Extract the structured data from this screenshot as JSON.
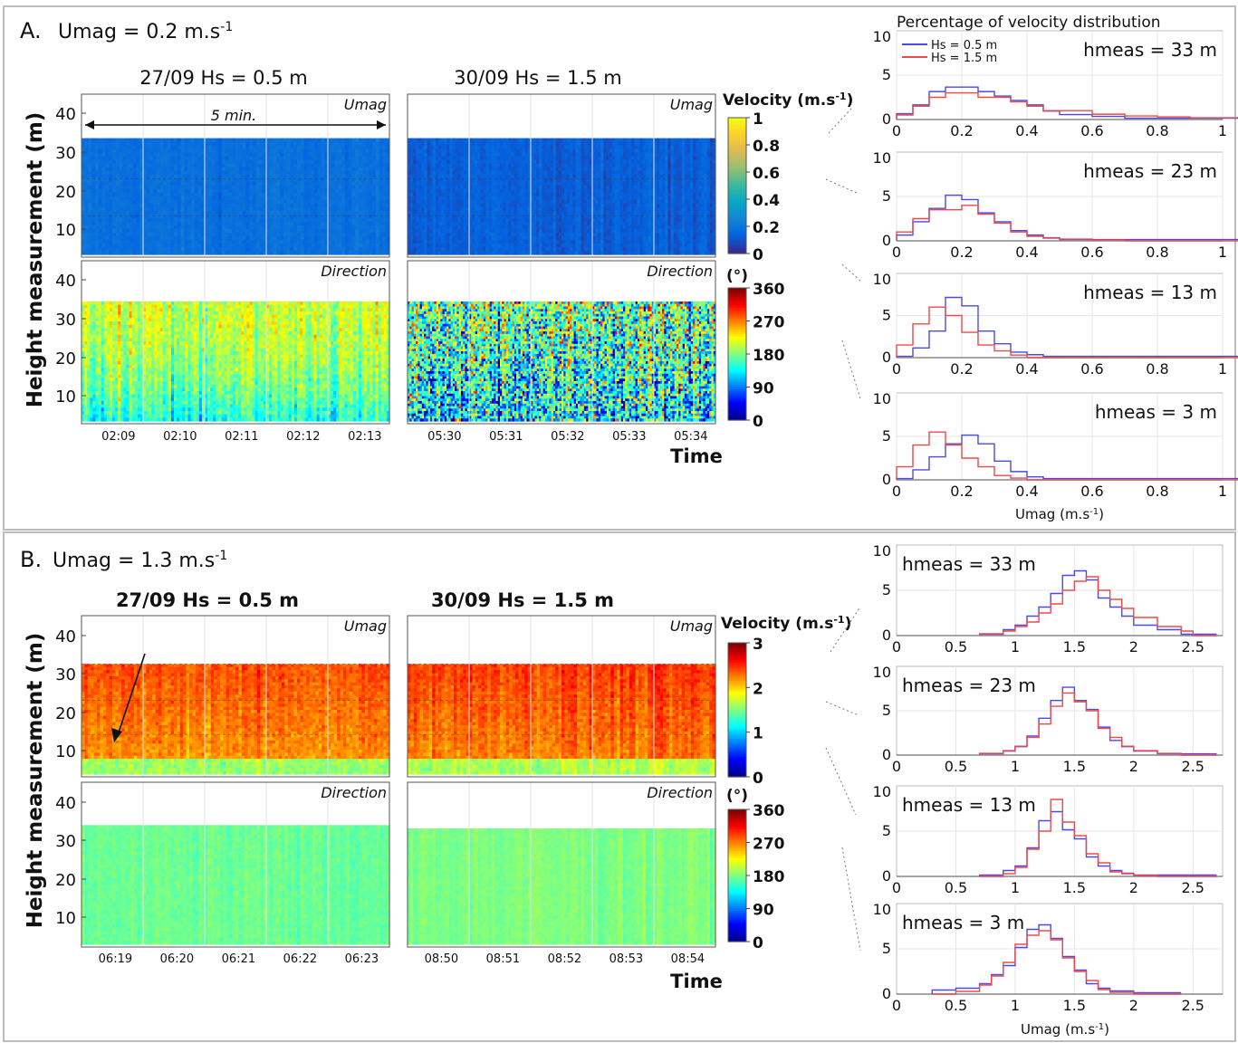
{
  "figure": {
    "colors": {
      "series_hs05": "#4a4ae8",
      "series_hs15": "#f04848",
      "jet": [
        "#00008f",
        "#0000ff",
        "#0080ff",
        "#00ffff",
        "#80ff80",
        "#ffff00",
        "#ff8000",
        "#ff0000",
        "#800000"
      ],
      "parula": [
        "#352a87",
        "#0363e1",
        "#1485d4",
        "#06a7c6",
        "#38b99e",
        "#92bf73",
        "#d9ba56",
        "#fcce2e",
        "#f9fb0e"
      ]
    }
  },
  "panels": [
    {
      "id": "A",
      "letter": "A.",
      "title": "Umag = 0.2 m.s",
      "title_sup": "-1",
      "columns": [
        {
          "title": "27/09 Hs = 0.5 m",
          "times": [
            "02:09",
            "02:10",
            "02:11",
            "02:12",
            "02:13"
          ]
        },
        {
          "title": "30/09 Hs = 1.5 m",
          "times": [
            "05:30",
            "05:31",
            "05:32",
            "05:33",
            "05:34"
          ]
        }
      ],
      "span_label": "5 min.",
      "ylabel": "Height measurement (m)",
      "yticks": [
        "40",
        "30",
        "20",
        "10"
      ],
      "xlabel": "Time",
      "row_labels": [
        "Umag",
        "Direction"
      ],
      "colorbar_velocity": {
        "title": "Velocity (m.s",
        "title_sup": "-1",
        "title_end": ")",
        "ticks": [
          "1",
          "0.8",
          "0.6",
          "0.4",
          "0.2",
          "0"
        ],
        "colormap": "parula"
      },
      "colorbar_direction": {
        "title": "(°)",
        "ticks": [
          "360",
          "270",
          "180",
          "90",
          "0"
        ],
        "colormap": "jet"
      },
      "hist_header": "Percentage of velocity distribution",
      "hist_xlabel": "Umag (m.s",
      "hist_xlabel_sup": "-1",
      "hist_xlabel_end": ")",
      "hist_ylim": [
        0,
        10
      ]
    },
    {
      "id": "B",
      "letter": "B.",
      "title": "Umag = 1.3 m.s",
      "title_sup": "-1",
      "columns": [
        {
          "title": "27/09 Hs = 0.5 m",
          "times": [
            "06:19",
            "06:20",
            "06:21",
            "06:22",
            "06:23"
          ]
        },
        {
          "title": "30/09 Hs = 1.5 m",
          "times": [
            "08:50",
            "08:51",
            "08:52",
            "08:53",
            "08:54"
          ]
        }
      ],
      "ylabel": "Height measurement (m)",
      "yticks": [
        "40",
        "30",
        "20",
        "10"
      ],
      "xlabel": "Time",
      "row_labels": [
        "Umag",
        "Direction"
      ],
      "colorbar_velocity": {
        "title": "Velocity (m.s",
        "title_sup": "-1",
        "title_end": ")",
        "ticks": [
          "3",
          "2",
          "1",
          "0"
        ],
        "colormap": "jet"
      },
      "colorbar_direction": {
        "title": "(°)",
        "ticks": [
          "360",
          "270",
          "180",
          "90",
          "0"
        ],
        "colormap": "jet"
      },
      "hist_xlabel": "Umag (m.s",
      "hist_xlabel_sup": "-1",
      "hist_xlabel_end": ")",
      "hist_ylim": [
        0,
        10
      ]
    }
  ],
  "chart_data": [
    {
      "type": "heatmap",
      "panel": "A",
      "description_fields": {
        "rows": [
          "Umag",
          "Direction"
        ]
      },
      "columns": [
        "27/09 Hs = 0.5 m",
        "30/09 Hs = 1.5 m"
      ],
      "x_ticks": [
        [
          "02:09",
          "02:10",
          "02:11",
          "02:12",
          "02:13"
        ],
        [
          "05:30",
          "05:31",
          "05:32",
          "05:33",
          "05:34"
        ]
      ],
      "y_ticks": [
        40,
        30,
        20,
        10
      ],
      "ylim": [
        2,
        44
      ],
      "data_extent_height": [
        3,
        33
      ],
      "measurement_heights": [
        3,
        13,
        23,
        33
      ],
      "umag_clim": [
        0,
        1
      ],
      "direction_clim": [
        0,
        360
      ],
      "typical_umag": [
        0.15,
        0.18
      ],
      "typical_direction": [
        170,
        190
      ]
    },
    {
      "type": "heatmap",
      "panel": "B",
      "columns": [
        "27/09 Hs = 0.5 m",
        "30/09 Hs = 1.5 m"
      ],
      "x_ticks": [
        [
          "06:19",
          "06:20",
          "06:21",
          "06:22",
          "06:23"
        ],
        [
          "08:50",
          "08:51",
          "08:52",
          "08:53",
          "08:54"
        ]
      ],
      "y_ticks": [
        40,
        30,
        20,
        10
      ],
      "ylim": [
        2,
        44
      ],
      "data_extent_height": [
        3,
        33
      ],
      "measurement_heights": [
        3,
        13,
        23,
        33
      ],
      "umag_clim": [
        0,
        3
      ],
      "direction_clim": [
        0,
        360
      ],
      "typical_umag": [
        2.3,
        2.4
      ],
      "typical_direction": [
        175,
        180
      ]
    },
    {
      "type": "line",
      "panel": "A",
      "step": true,
      "legend": [
        "Hs = 0.5 m",
        "Hs = 1.5 m"
      ],
      "legend_position": "top-left",
      "xlim": [
        0,
        1
      ],
      "ylim": [
        0,
        10
      ],
      "xticks": [
        0,
        0.2,
        0.4,
        0.6,
        0.8,
        1
      ],
      "yticks": [
        0,
        5,
        10
      ],
      "subplots": [
        {
          "label": "hmeas = 33 m",
          "x": [
            0,
            0.05,
            0.1,
            0.15,
            0.2,
            0.25,
            0.3,
            0.35,
            0.4,
            0.45,
            0.5,
            0.6,
            0.7,
            0.8,
            0.9,
            1.0
          ],
          "series": [
            {
              "name": "Hs = 0.5 m",
              "values": [
                0.5,
                1.5,
                3.0,
                3.5,
                3.5,
                3.0,
                2.5,
                2.0,
                1.5,
                0.8,
                0.4,
                0.2,
                0,
                0,
                0,
                0
              ]
            },
            {
              "name": "Hs = 1.5 m",
              "values": [
                0.5,
                1.5,
                2.5,
                3.0,
                3.0,
                2.5,
                2.5,
                2.0,
                1.5,
                1.0,
                1.0,
                0.6,
                0.4,
                0.3,
                0.2,
                0.2
              ]
            }
          ]
        },
        {
          "label": "hmeas = 23 m",
          "x": [
            0,
            0.05,
            0.1,
            0.15,
            0.2,
            0.25,
            0.3,
            0.35,
            0.4,
            0.45,
            0.5,
            0.6,
            0.7,
            0.8,
            0.9,
            1.0
          ],
          "series": [
            {
              "name": "Hs = 0.5 m",
              "values": [
                0.5,
                2.0,
                3.5,
                5.0,
                4.5,
                3.0,
                2.0,
                1.0,
                0.5,
                0.2,
                0,
                0,
                0,
                0,
                0,
                0
              ]
            },
            {
              "name": "Hs = 1.5 m",
              "values": [
                1.0,
                2.5,
                3.5,
                3.5,
                4.0,
                3.0,
                2.0,
                1.0,
                0.5,
                0.3,
                0.2,
                0.1,
                0,
                0,
                0,
                0
              ]
            }
          ]
        },
        {
          "label": "hmeas = 13 m",
          "x": [
            0,
            0.05,
            0.1,
            0.15,
            0.2,
            0.25,
            0.3,
            0.35,
            0.4,
            0.45,
            0.5,
            0.6,
            0.7,
            0.8,
            0.9,
            1.0
          ],
          "series": [
            {
              "name": "Hs = 0.5 m",
              "values": [
                0,
                1.0,
                3.0,
                7.0,
                6.0,
                3.0,
                1.5,
                0.5,
                0.2,
                0,
                0,
                0,
                0,
                0,
                0,
                0
              ]
            },
            {
              "name": "Hs = 1.5 m",
              "values": [
                1.5,
                4.0,
                6.0,
                5.0,
                3.0,
                1.5,
                0.8,
                0.3,
                0,
                0,
                0,
                0,
                0,
                0,
                0,
                0
              ]
            }
          ]
        },
        {
          "label": "hmeas = 3 m",
          "x": [
            0,
            0.05,
            0.1,
            0.15,
            0.2,
            0.25,
            0.3,
            0.35,
            0.4,
            0.45,
            0.5,
            0.6,
            0.7,
            0.8,
            0.9,
            1.0
          ],
          "series": [
            {
              "name": "Hs = 0.5 m",
              "values": [
                0,
                1.0,
                2.5,
                4.0,
                5.0,
                4.0,
                2.0,
                0.8,
                0.2,
                0,
                0,
                0,
                0,
                0,
                0,
                0
              ]
            },
            {
              "name": "Hs = 1.5 m",
              "values": [
                1.5,
                4.0,
                5.5,
                4.0,
                2.5,
                1.5,
                0.5,
                0.2,
                0,
                0,
                0,
                0,
                0,
                0,
                0,
                0
              ]
            }
          ]
        }
      ]
    },
    {
      "type": "line",
      "panel": "B",
      "step": true,
      "xlim": [
        0,
        2.75
      ],
      "ylim": [
        0,
        10
      ],
      "xticks": [
        0,
        0.5,
        1,
        1.5,
        2,
        2.5
      ],
      "yticks": [
        0,
        5,
        10
      ],
      "subplots": [
        {
          "label": "hmeas = 33 m",
          "x": [
            0.7,
            0.9,
            1.0,
            1.1,
            1.2,
            1.3,
            1.4,
            1.5,
            1.6,
            1.7,
            1.8,
            1.9,
            2.0,
            2.2,
            2.4,
            2.5
          ],
          "series": [
            {
              "name": "Hs = 0.5 m",
              "values": [
                0,
                0.5,
                1.0,
                2.0,
                3.0,
                4.5,
                6.5,
                7.0,
                6.0,
                4.0,
                3.0,
                2.0,
                1.0,
                0.5,
                0,
                0
              ]
            },
            {
              "name": "Hs = 1.5 m",
              "values": [
                0.2,
                0.5,
                1.0,
                1.5,
                2.5,
                3.5,
                5.0,
                6.0,
                6.5,
                5.0,
                4.0,
                3.0,
                2.0,
                1.0,
                0.5,
                0
              ]
            }
          ]
        },
        {
          "label": "hmeas = 23 m",
          "x": [
            0.7,
            0.9,
            1.0,
            1.1,
            1.2,
            1.3,
            1.4,
            1.5,
            1.6,
            1.7,
            1.8,
            1.9,
            2.0,
            2.2,
            2.4,
            2.5
          ],
          "series": [
            {
              "name": "Hs = 0.5 m",
              "values": [
                0,
                0.3,
                0.8,
                2.0,
                4.0,
                6.0,
                7.5,
                6.0,
                5.0,
                3.0,
                1.5,
                0.8,
                0.3,
                0,
                0,
                0
              ]
            },
            {
              "name": "Hs = 1.5 m",
              "values": [
                0.2,
                0.5,
                1.0,
                2.0,
                3.5,
                5.5,
                7.0,
                6.0,
                5.0,
                3.0,
                2.0,
                1.0,
                0.5,
                0.2,
                0,
                0
              ]
            }
          ]
        },
        {
          "label": "hmeas = 13 m",
          "x": [
            0.7,
            0.9,
            1.0,
            1.1,
            1.2,
            1.3,
            1.4,
            1.5,
            1.6,
            1.7,
            1.8,
            1.9,
            2.0,
            2.2,
            2.4,
            2.5
          ],
          "series": [
            {
              "name": "Hs = 0.5 m",
              "values": [
                0,
                0.5,
                1.0,
                3.0,
                6.0,
                7.0,
                5.0,
                4.0,
                2.0,
                1.0,
                0.5,
                0.2,
                0,
                0,
                0,
                0
              ]
            },
            {
              "name": "Hs = 1.5 m",
              "values": [
                0,
                0.3,
                1.0,
                3.0,
                5.0,
                8.5,
                6.0,
                4.5,
                2.5,
                1.5,
                0.5,
                0.3,
                0.1,
                0,
                0,
                0
              ]
            }
          ]
        },
        {
          "label": "hmeas = 3 m",
          "x": [
            0.3,
            0.5,
            0.7,
            0.8,
            0.9,
            1.0,
            1.1,
            1.2,
            1.3,
            1.4,
            1.5,
            1.6,
            1.7,
            1.8,
            2.0,
            2.2
          ],
          "series": [
            {
              "name": "Hs = 0.5 m",
              "values": [
                0.3,
                0.5,
                1.0,
                2.0,
                3.0,
                5.0,
                7.0,
                7.5,
                6.0,
                4.0,
                2.5,
                1.0,
                0.5,
                0.2,
                0,
                0
              ]
            },
            {
              "name": "Hs = 1.5 m",
              "values": [
                0,
                0.3,
                1.0,
                2.0,
                3.5,
                5.5,
                6.5,
                7.0,
                6.0,
                4.0,
                2.5,
                1.5,
                0.5,
                0.2,
                0,
                0
              ]
            }
          ]
        }
      ]
    }
  ]
}
